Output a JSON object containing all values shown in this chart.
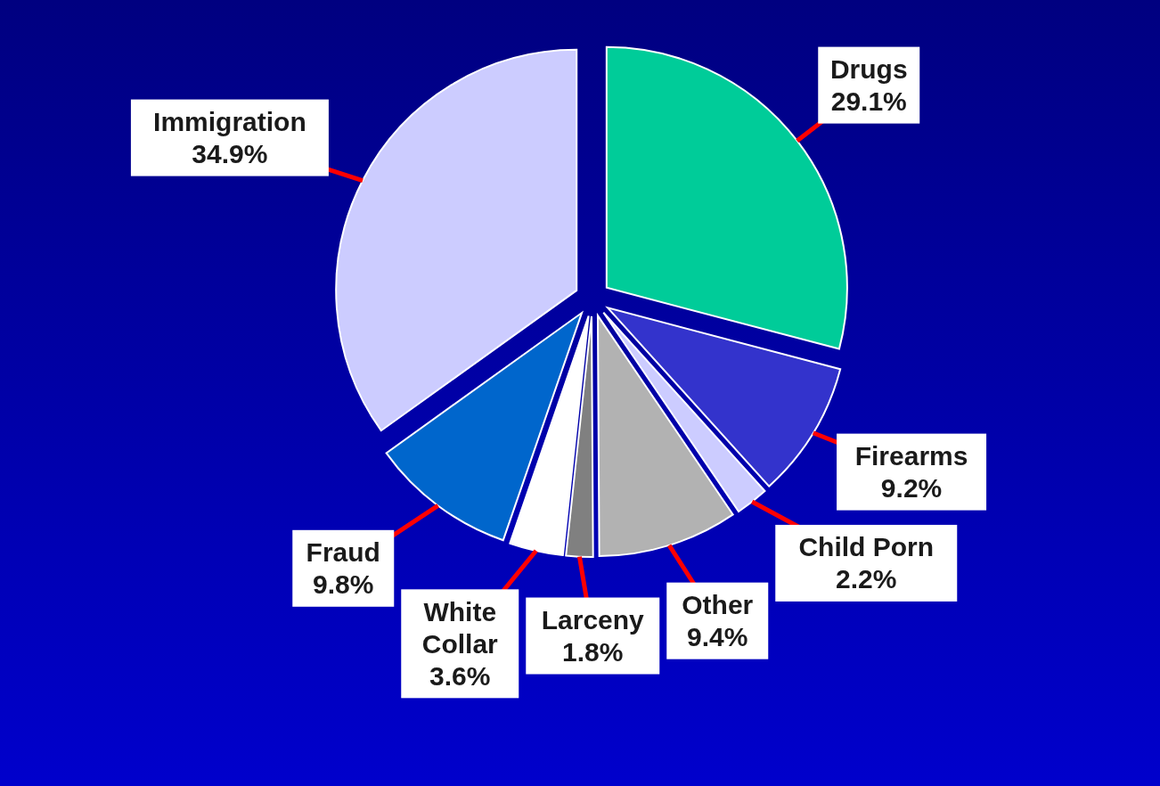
{
  "chart_data": {
    "type": "pie",
    "categories": [
      "Drugs",
      "Firearms",
      "Child Porn",
      "Other",
      "Larceny",
      "White Collar",
      "Fraud",
      "Immigration"
    ],
    "values": [
      29.1,
      9.2,
      2.2,
      9.4,
      1.8,
      3.6,
      9.8,
      34.9
    ],
    "colors": [
      "#00cc99",
      "#3333cc",
      "#ccccff",
      "#b2b2b2",
      "#808080",
      "#ffffff",
      "#0066cc",
      "#ccccff"
    ],
    "value_labels": [
      "29.1%",
      "9.2%",
      "2.2%",
      "9.4%",
      "1.8%",
      "3.6%",
      "9.8%",
      "34.9%"
    ]
  }
}
